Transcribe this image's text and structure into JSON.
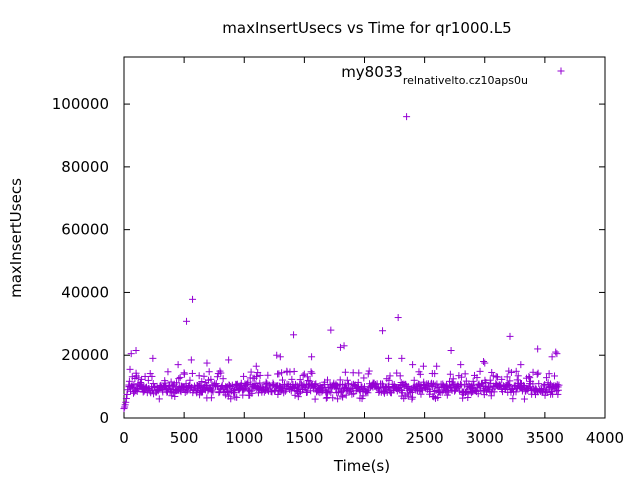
{
  "chart_data": {
    "type": "scatter",
    "title": "maxInsertUsecs vs Time for qr1000.L5",
    "xlabel": "Time(s)",
    "ylabel": "maxInsertUsecs",
    "xlim": [
      0,
      4000
    ],
    "ylim": [
      0,
      115000
    ],
    "x_ticks": [
      "0",
      "500",
      "1000",
      "1500",
      "2000",
      "2500",
      "3000",
      "3500",
      "4000"
    ],
    "y_ticks": [
      "0",
      "20000",
      "40000",
      "60000",
      "80000",
      "100000"
    ],
    "grid": false,
    "legend_position": "top-right",
    "marker": "+",
    "color": "#9400d3",
    "series": [
      {
        "name": "my8033_rel_native_lto.cz10aps0_u",
        "points": [
          [
            0,
            3000
          ],
          [
            5,
            3500
          ],
          [
            10,
            4200
          ],
          [
            15,
            5000
          ],
          [
            20,
            6200
          ],
          [
            25,
            7500
          ],
          [
            30,
            9000
          ],
          [
            40,
            10500
          ],
          [
            50,
            15500
          ],
          [
            60,
            20500
          ],
          [
            100,
            21500
          ],
          [
            240,
            19000
          ],
          [
            450,
            17000
          ],
          [
            520,
            30800
          ],
          [
            560,
            18500
          ],
          [
            570,
            37800
          ],
          [
            690,
            17500
          ],
          [
            870,
            18500
          ],
          [
            1100,
            16500
          ],
          [
            1270,
            20000
          ],
          [
            1300,
            19500
          ],
          [
            1410,
            26500
          ],
          [
            1560,
            19500
          ],
          [
            1720,
            28000
          ],
          [
            1800,
            22500
          ],
          [
            1830,
            23000
          ],
          [
            2150,
            27800
          ],
          [
            2200,
            19000
          ],
          [
            2280,
            32000
          ],
          [
            2310,
            19000
          ],
          [
            2350,
            96000
          ],
          [
            2400,
            17000
          ],
          [
            2490,
            16500
          ],
          [
            2600,
            16500
          ],
          [
            2720,
            21500
          ],
          [
            2800,
            17000
          ],
          [
            2990,
            18000
          ],
          [
            3000,
            17500
          ],
          [
            3210,
            26000
          ],
          [
            3300,
            17000
          ],
          [
            3440,
            22000
          ],
          [
            3560,
            19500
          ],
          [
            3590,
            21000
          ],
          [
            3600,
            20500
          ]
        ],
        "dense_band": {
          "x_range": [
            40,
            3620
          ],
          "y_range": [
            6000,
            15000
          ]
        }
      }
    ]
  }
}
